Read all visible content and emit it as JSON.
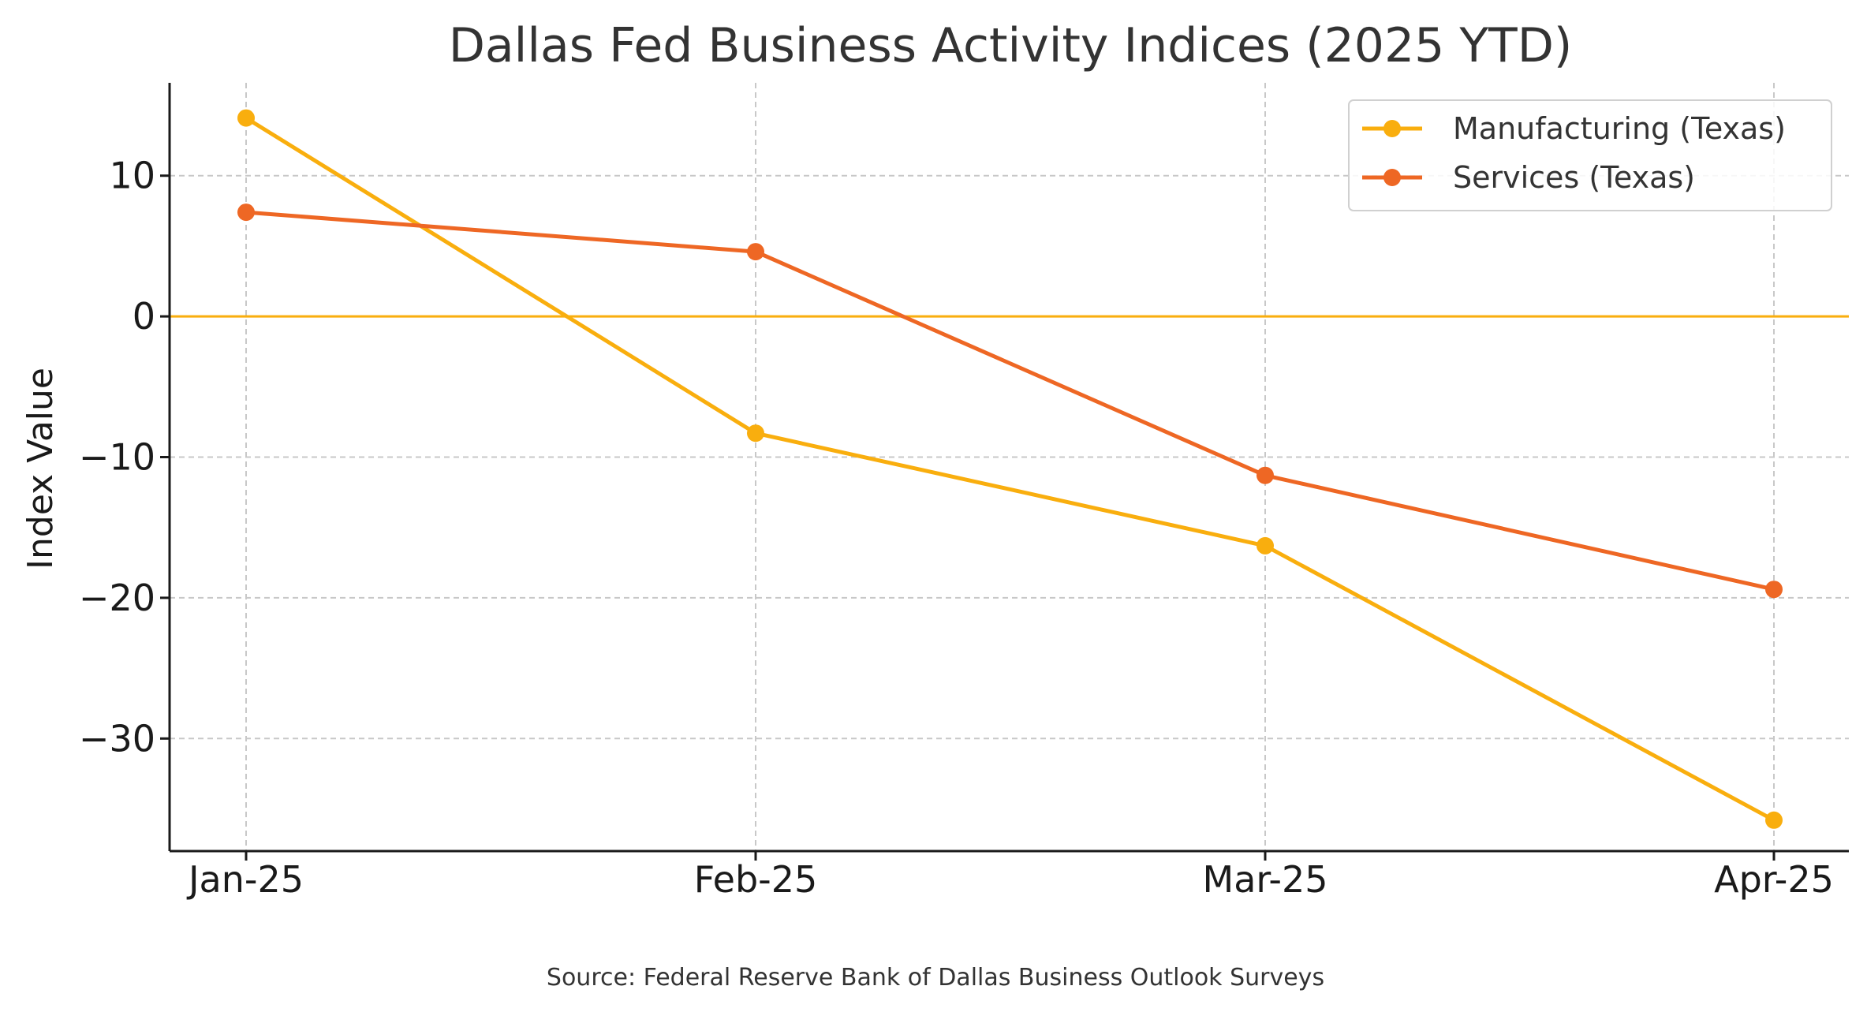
{
  "chart_data": {
    "type": "line",
    "title": "Dallas Fed Business Activity Indices (2025 YTD)",
    "xlabel": "",
    "ylabel": "Index Value",
    "categories": [
      "Jan-25",
      "Feb-25",
      "Mar-25",
      "Apr-25"
    ],
    "series": [
      {
        "name": "Manufacturing (Texas)",
        "color": "#F9AE0E",
        "values": [
          14.1,
          -8.3,
          -16.3,
          -35.8
        ]
      },
      {
        "name": "Services (Texas)",
        "color": "#EE6724",
        "values": [
          7.4,
          4.6,
          -11.3,
          -19.4
        ]
      }
    ],
    "ylim": [
      -38,
      16.6
    ],
    "yticks": [
      10,
      0,
      -10,
      -20,
      -30
    ],
    "ytick_labels": [
      "10",
      "0",
      "−10",
      "−20",
      "−30"
    ],
    "reference_line": {
      "y": 0,
      "color": "#F9AE0E"
    },
    "grid": true,
    "legend_position": "top-right",
    "source": "Source: Federal Reserve Bank of Dallas Business Outlook Surveys"
  }
}
